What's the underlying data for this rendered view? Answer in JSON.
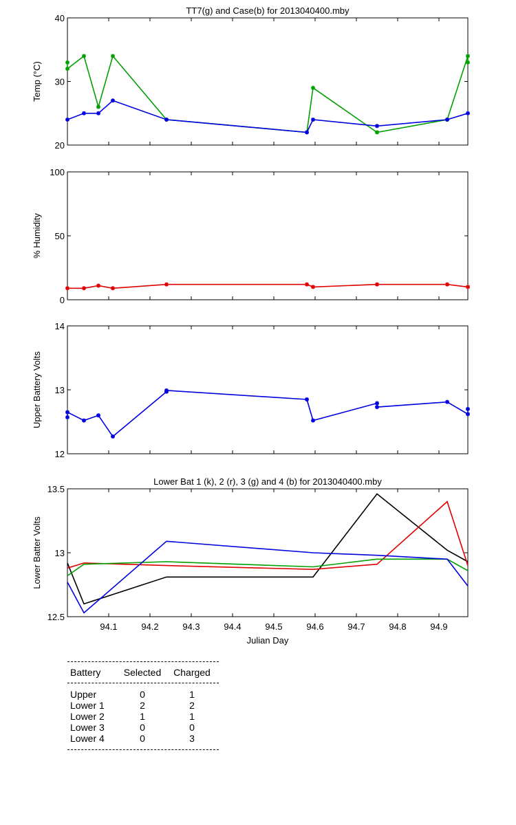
{
  "chart_data": [
    {
      "type": "line",
      "title": "TT7(g) and Case(b) for 2013040400.mby",
      "xlabel": "",
      "ylabel": "Temp  (°C)",
      "xlim": [
        94.0,
        94.97
      ],
      "ylim": [
        20,
        40
      ],
      "yticks": [
        20,
        30,
        40
      ],
      "series": [
        {
          "color": "#00a000",
          "x": [
            94.0,
            94.0,
            94.04,
            94.075,
            94.11,
            94.24,
            94.58,
            94.595,
            94.75,
            94.92,
            94.97,
            94.97
          ],
          "y": [
            33,
            32,
            34,
            26,
            34,
            24,
            22,
            29,
            22,
            24,
            34,
            33
          ]
        },
        {
          "color": "#0000e0",
          "x": [
            94.0,
            94.04,
            94.075,
            94.11,
            94.24,
            94.58,
            94.595,
            94.75,
            94.92,
            94.97
          ],
          "y": [
            24,
            25,
            25,
            27,
            24,
            22,
            24,
            23,
            24,
            25
          ]
        }
      ]
    },
    {
      "type": "line",
      "title": "",
      "xlabel": "",
      "ylabel": "% Humidity",
      "xlim": [
        94.0,
        94.97
      ],
      "ylim": [
        0,
        100
      ],
      "yticks": [
        0,
        50,
        100
      ],
      "series": [
        {
          "color": "#e00000",
          "x": [
            94.0,
            94.04,
            94.075,
            94.11,
            94.24,
            94.58,
            94.595,
            94.75,
            94.92,
            94.97
          ],
          "y": [
            9,
            9,
            11,
            9,
            12,
            12,
            10,
            12,
            12,
            10
          ]
        }
      ]
    },
    {
      "type": "line",
      "title": "",
      "xlabel": "",
      "ylabel": "Upper Battery Volts",
      "xlim": [
        94.0,
        94.97
      ],
      "ylim": [
        12,
        14
      ],
      "yticks": [
        12,
        13,
        14
      ],
      "series": [
        {
          "color": "#0000e0",
          "x": [
            94.0,
            94.0,
            94.04,
            94.075,
            94.11,
            94.24,
            94.24,
            94.58,
            94.595,
            94.75,
            94.75,
            94.92,
            94.97,
            94.97
          ],
          "y": [
            12.57,
            12.65,
            12.52,
            12.6,
            12.27,
            12.97,
            12.99,
            12.85,
            12.52,
            12.79,
            12.73,
            12.81,
            12.62,
            12.7
          ]
        }
      ]
    },
    {
      "type": "line",
      "title": "Lower Bat 1 (k), 2 (r), 3 (g) and 4 (b) for 2013040400.mby",
      "xlabel": "Julian Day",
      "ylabel": "Lower Batter Volts",
      "xlim": [
        94.0,
        94.97
      ],
      "ylim": [
        12.5,
        13.5
      ],
      "yticks": [
        12.5,
        13,
        13.5
      ],
      "xticks": [
        94.1,
        94.2,
        94.3,
        94.4,
        94.5,
        94.6,
        94.7,
        94.8,
        94.9
      ],
      "series": [
        {
          "color": "#000000",
          "x": [
            94.0,
            94.04,
            94.24,
            94.595,
            94.75,
            94.92,
            94.97
          ],
          "y": [
            12.92,
            12.6,
            12.81,
            12.81,
            13.46,
            13.02,
            12.93
          ]
        },
        {
          "color": "#e00000",
          "x": [
            94.0,
            94.04,
            94.24,
            94.595,
            94.75,
            94.92,
            94.97
          ],
          "y": [
            12.88,
            12.92,
            12.9,
            12.87,
            12.91,
            13.4,
            12.9
          ]
        },
        {
          "color": "#00a000",
          "x": [
            94.0,
            94.04,
            94.24,
            94.595,
            94.75,
            94.92,
            94.97
          ],
          "y": [
            12.82,
            12.91,
            12.93,
            12.89,
            12.95,
            12.95,
            12.86
          ]
        },
        {
          "color": "#0000e0",
          "x": [
            94.0,
            94.04,
            94.24,
            94.595,
            94.75,
            94.92,
            94.97
          ],
          "y": [
            12.77,
            12.53,
            13.09,
            13.0,
            12.98,
            12.95,
            12.74
          ]
        }
      ]
    }
  ],
  "battery_table": {
    "headers": [
      "Battery",
      "Selected",
      "Charged"
    ],
    "rows": [
      [
        "Upper",
        "0",
        "1"
      ],
      [
        "Lower 1",
        "2",
        "2"
      ],
      [
        "Lower 2",
        "1",
        "1"
      ],
      [
        "Lower 3",
        "0",
        "0"
      ],
      [
        "Lower 4",
        "0",
        "3"
      ]
    ]
  }
}
